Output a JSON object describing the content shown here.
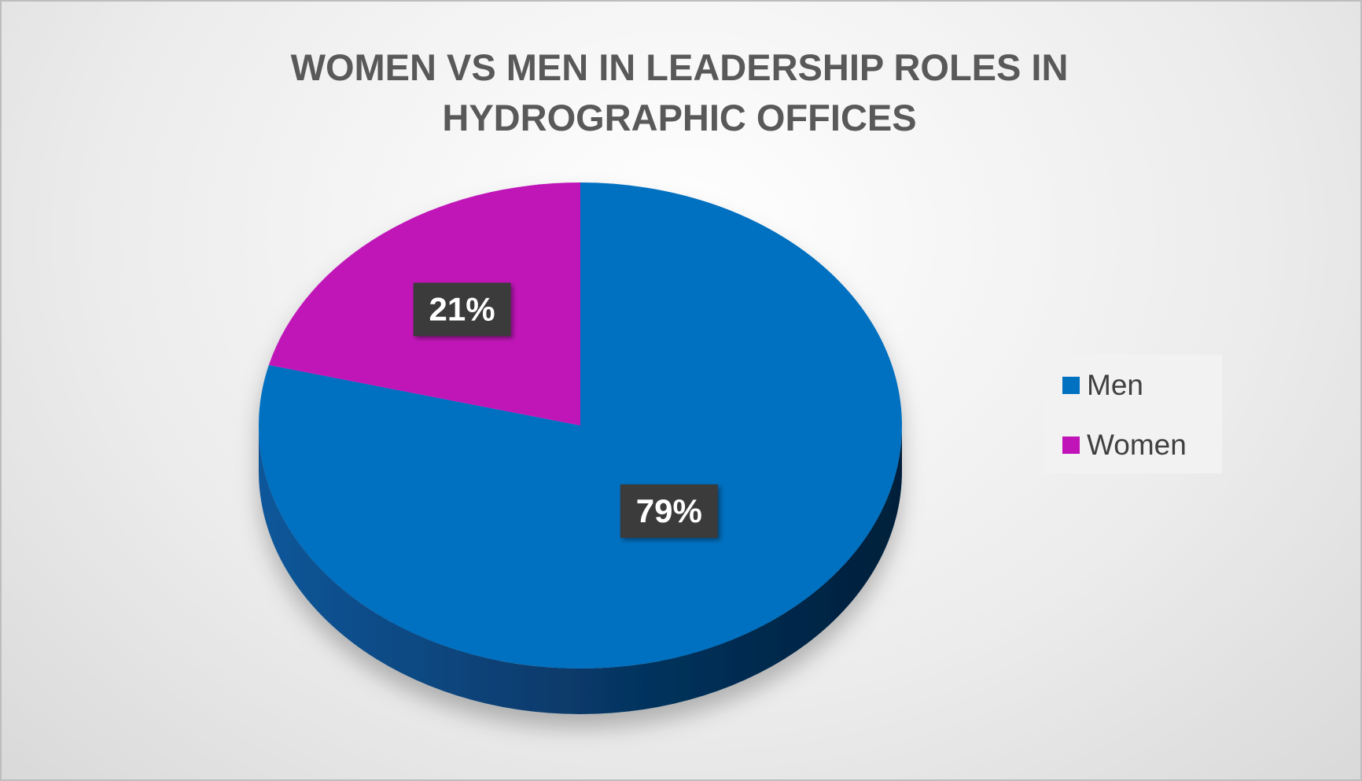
{
  "chart_data": {
    "type": "pie",
    "title": "WOMEN VS MEN IN LEADERSHIP ROLES IN HYDROGRAPHIC OFFICES",
    "categories": [
      "Men",
      "Women"
    ],
    "values": [
      79,
      21
    ],
    "value_labels": [
      "79%",
      "21%"
    ],
    "colors": [
      "#0070c0",
      "#c014b8"
    ],
    "legend": "right"
  }
}
